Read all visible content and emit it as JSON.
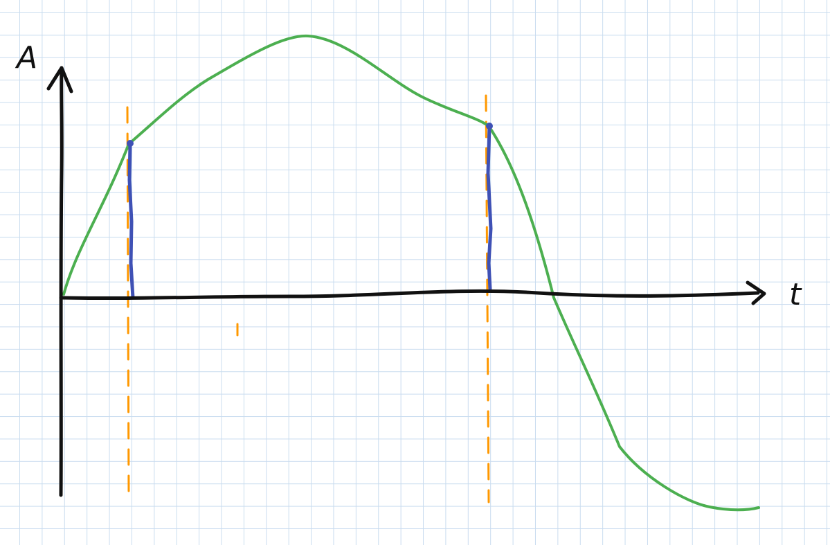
{
  "labels": {
    "y_axis": "A",
    "x_axis": "t"
  },
  "colors": {
    "background": "#ffffff",
    "grid": "#c9dcef",
    "axes": "#111111",
    "curve": "#4caf50",
    "samples": "#3f51b5",
    "guides": "#ff9800"
  }
}
